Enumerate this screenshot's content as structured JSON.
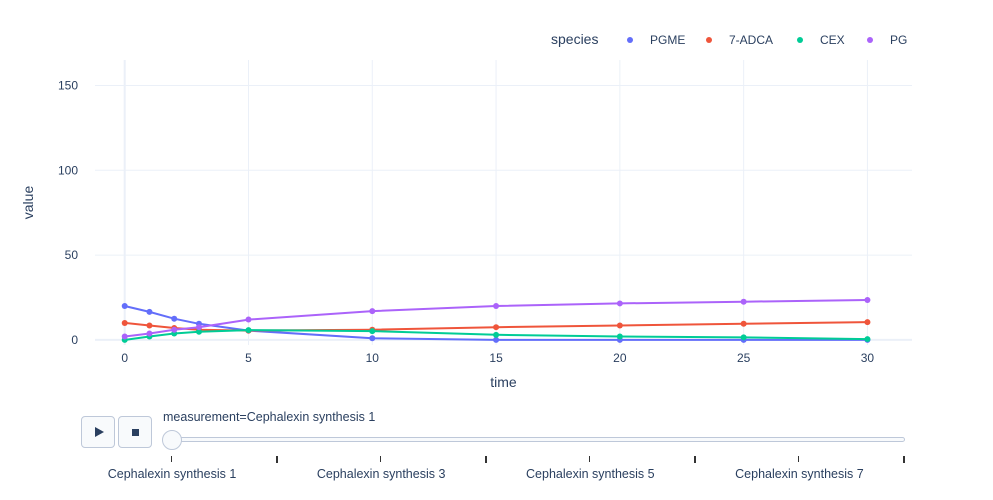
{
  "chart_data": {
    "type": "line",
    "xlabel": "time",
    "ylabel": "value",
    "xlim": [
      -1.2,
      31.8
    ],
    "ylim": [
      -3,
      165
    ],
    "x_ticks": [
      0,
      5,
      10,
      15,
      20,
      25,
      30
    ],
    "y_ticks": [
      0,
      50,
      100,
      150
    ],
    "grid": true,
    "legend": {
      "title": "species",
      "placement": "top-right",
      "orientation": "horizontal"
    },
    "series": [
      {
        "name": "PGME",
        "color": "#636efa",
        "x": [
          0,
          1,
          2,
          3,
          5,
          10,
          15,
          20,
          25,
          30
        ],
        "y": [
          20,
          16.5,
          12.5,
          9.5,
          5.5,
          1,
          0,
          0,
          0,
          0
        ]
      },
      {
        "name": "7-ADCA",
        "color": "#EF553B",
        "x": [
          0,
          1,
          2,
          3,
          5,
          10,
          15,
          20,
          25,
          30
        ],
        "y": [
          10,
          8.5,
          7,
          6,
          5.5,
          6,
          7.5,
          8.5,
          9.5,
          10.5
        ]
      },
      {
        "name": "CEX",
        "color": "#00cc96",
        "x": [
          0,
          1,
          2,
          3,
          5,
          10,
          15,
          20,
          25,
          30
        ],
        "y": [
          0,
          2,
          3.8,
          4.8,
          5.8,
          5.2,
          3,
          2,
          1.5,
          0.5
        ]
      },
      {
        "name": "PG",
        "color": "#ab63fa",
        "x": [
          0,
          1,
          2,
          3,
          5,
          10,
          15,
          20,
          25,
          30
        ],
        "y": [
          2,
          3.8,
          6,
          7.5,
          12,
          17,
          20,
          21.5,
          22.5,
          23.5
        ]
      }
    ]
  },
  "slider": {
    "current_label": "measurement=Cephalexin synthesis 1",
    "step_labels": [
      "Cephalexin synthesis 1",
      "Cephalexin synthesis 3",
      "Cephalexin synthesis 5",
      "Cephalexin synthesis 7"
    ],
    "total_steps": 8,
    "current_index": 0
  },
  "controls": {
    "play_icon": "play-icon",
    "stop_icon": "stop-icon"
  }
}
